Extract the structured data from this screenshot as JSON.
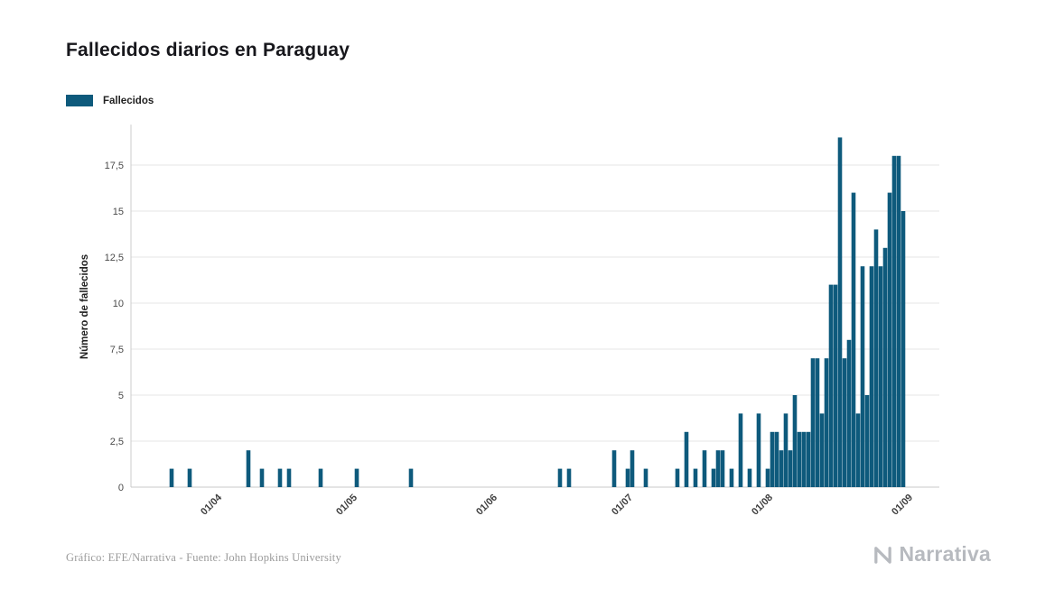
{
  "header": {
    "title": "Fallecidos diarios en Paraguay"
  },
  "legend": {
    "label": "Fallecidos",
    "color": "#0e5a7c"
  },
  "footer": {
    "credit": "Gráfico: EFE/Narrativa - Fuente: John Hopkins University",
    "brand": "Narrativa"
  },
  "chart_data": {
    "type": "bar",
    "title": "Fallecidos diarios en Paraguay",
    "series_name": "Fallecidos",
    "ylabel": "Número de fallecidos",
    "xlabel": "",
    "bar_color": "#0e5a7c",
    "grid": true,
    "legend_position": "top-left",
    "ylim": [
      0,
      19.7
    ],
    "yticks": [
      0,
      2.5,
      5,
      7.5,
      10,
      12.5,
      15,
      17.5
    ],
    "ytick_labels": [
      "0",
      "2,5",
      "5",
      "7,5",
      "10",
      "12,5",
      "15",
      "17,5"
    ],
    "xticks": [
      {
        "date": "2020-04-01",
        "label": "01/04"
      },
      {
        "date": "2020-05-01",
        "label": "01/05"
      },
      {
        "date": "2020-06-01",
        "label": "01/06"
      },
      {
        "date": "2020-07-01",
        "label": "01/07"
      },
      {
        "date": "2020-08-01",
        "label": "01/08"
      },
      {
        "date": "2020-09-01",
        "label": "01/09"
      }
    ],
    "x_domain": [
      "2020-03-13",
      "2020-09-08"
    ],
    "points": [
      {
        "date": "2020-03-22",
        "value": 1
      },
      {
        "date": "2020-03-26",
        "value": 1
      },
      {
        "date": "2020-04-08",
        "value": 2
      },
      {
        "date": "2020-04-11",
        "value": 1
      },
      {
        "date": "2020-04-15",
        "value": 1
      },
      {
        "date": "2020-04-17",
        "value": 1
      },
      {
        "date": "2020-04-24",
        "value": 1
      },
      {
        "date": "2020-05-02",
        "value": 1
      },
      {
        "date": "2020-05-14",
        "value": 1
      },
      {
        "date": "2020-06-16",
        "value": 1
      },
      {
        "date": "2020-06-18",
        "value": 1
      },
      {
        "date": "2020-06-28",
        "value": 2
      },
      {
        "date": "2020-07-01",
        "value": 1
      },
      {
        "date": "2020-07-02",
        "value": 2
      },
      {
        "date": "2020-07-05",
        "value": 1
      },
      {
        "date": "2020-07-12",
        "value": 1
      },
      {
        "date": "2020-07-14",
        "value": 3
      },
      {
        "date": "2020-07-16",
        "value": 1
      },
      {
        "date": "2020-07-18",
        "value": 2
      },
      {
        "date": "2020-07-20",
        "value": 1
      },
      {
        "date": "2020-07-21",
        "value": 2
      },
      {
        "date": "2020-07-22",
        "value": 2
      },
      {
        "date": "2020-07-24",
        "value": 1
      },
      {
        "date": "2020-07-26",
        "value": 4
      },
      {
        "date": "2020-07-28",
        "value": 1
      },
      {
        "date": "2020-07-30",
        "value": 4
      },
      {
        "date": "2020-08-01",
        "value": 1
      },
      {
        "date": "2020-08-02",
        "value": 3
      },
      {
        "date": "2020-08-03",
        "value": 3
      },
      {
        "date": "2020-08-04",
        "value": 2
      },
      {
        "date": "2020-08-05",
        "value": 4
      },
      {
        "date": "2020-08-06",
        "value": 2
      },
      {
        "date": "2020-08-07",
        "value": 5
      },
      {
        "date": "2020-08-08",
        "value": 3
      },
      {
        "date": "2020-08-09",
        "value": 3
      },
      {
        "date": "2020-08-10",
        "value": 3
      },
      {
        "date": "2020-08-11",
        "value": 7
      },
      {
        "date": "2020-08-12",
        "value": 7
      },
      {
        "date": "2020-08-13",
        "value": 4
      },
      {
        "date": "2020-08-14",
        "value": 7
      },
      {
        "date": "2020-08-15",
        "value": 11
      },
      {
        "date": "2020-08-16",
        "value": 11
      },
      {
        "date": "2020-08-17",
        "value": 19
      },
      {
        "date": "2020-08-18",
        "value": 7
      },
      {
        "date": "2020-08-19",
        "value": 8
      },
      {
        "date": "2020-08-20",
        "value": 16
      },
      {
        "date": "2020-08-21",
        "value": 4
      },
      {
        "date": "2020-08-22",
        "value": 12
      },
      {
        "date": "2020-08-23",
        "value": 5
      },
      {
        "date": "2020-08-24",
        "value": 12
      },
      {
        "date": "2020-08-25",
        "value": 14
      },
      {
        "date": "2020-08-26",
        "value": 12
      },
      {
        "date": "2020-08-27",
        "value": 13
      },
      {
        "date": "2020-08-28",
        "value": 16
      },
      {
        "date": "2020-08-29",
        "value": 18
      },
      {
        "date": "2020-08-30",
        "value": 18
      },
      {
        "date": "2020-08-31",
        "value": 15
      }
    ]
  }
}
